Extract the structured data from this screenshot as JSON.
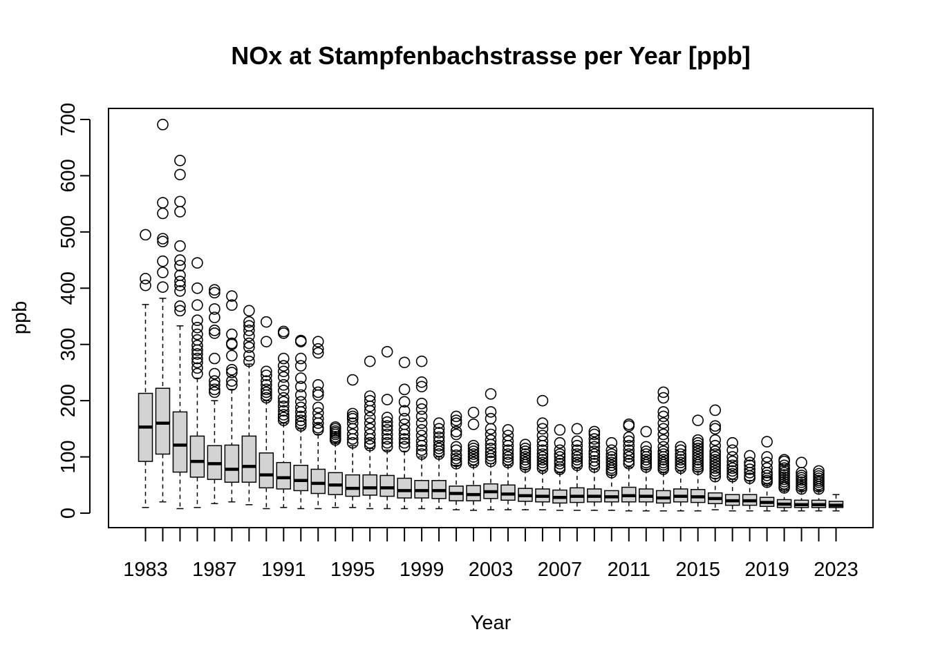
{
  "chart_data": {
    "type": "box",
    "title": "NOx at Stampfenbachstrasse per Year [ppb]",
    "xlabel": "Year",
    "ylabel": "ppb",
    "ylim": [
      0,
      700
    ],
    "y_ticks": [
      0,
      100,
      200,
      300,
      400,
      500,
      600,
      700
    ],
    "x_tick_labels": [
      "1983",
      "1987",
      "1991",
      "1995",
      "1999",
      "2003",
      "2007",
      "2011",
      "2015",
      "2019",
      "2023"
    ],
    "box_fill": "#d3d3d3",
    "grid": false,
    "categories": [
      1983,
      1984,
      1985,
      1986,
      1987,
      1988,
      1989,
      1990,
      1991,
      1992,
      1993,
      1994,
      1995,
      1996,
      1997,
      1998,
      1999,
      2000,
      2001,
      2002,
      2003,
      2004,
      2005,
      2006,
      2007,
      2008,
      2009,
      2010,
      2011,
      2012,
      2013,
      2014,
      2015,
      2016,
      2017,
      2018,
      2019,
      2020,
      2021,
      2022,
      2023
    ],
    "boxes": [
      {
        "year": 1983,
        "min": 10,
        "q1": 92,
        "median": 153,
        "q3": 213,
        "max": 371,
        "outliers": [
          405,
          417,
          495
        ]
      },
      {
        "year": 1984,
        "min": 20,
        "q1": 105,
        "median": 160,
        "q3": 222,
        "max": 382,
        "outliers": [
          402,
          428,
          448,
          483,
          488,
          533,
          552,
          691
        ]
      },
      {
        "year": 1985,
        "min": 8,
        "q1": 73,
        "median": 121,
        "q3": 180,
        "max": 333,
        "outliers": [
          360,
          368,
          395,
          405,
          412,
          423,
          440,
          450,
          475,
          536,
          554,
          602,
          627
        ]
      },
      {
        "year": 1986,
        "min": 10,
        "q1": 64,
        "median": 92,
        "q3": 137,
        "max": 240,
        "outliers": [
          248,
          258,
          268,
          275,
          283,
          290,
          298,
          308,
          318,
          330,
          343,
          370,
          400,
          445
        ]
      },
      {
        "year": 1987,
        "min": 17,
        "q1": 60,
        "median": 88,
        "q3": 120,
        "max": 200,
        "outliers": [
          215,
          220,
          228,
          235,
          248,
          275,
          320,
          325,
          348,
          363,
          392,
          397
        ]
      },
      {
        "year": 1988,
        "min": 20,
        "q1": 55,
        "median": 78,
        "q3": 121,
        "max": 220,
        "outliers": [
          228,
          235,
          250,
          255,
          280,
          300,
          302,
          318,
          370,
          386
        ]
      },
      {
        "year": 1989,
        "min": 15,
        "q1": 55,
        "median": 83,
        "q3": 137,
        "max": 265,
        "outliers": [
          270,
          280,
          295,
          302,
          315,
          325,
          333,
          340,
          360
        ]
      },
      {
        "year": 1990,
        "min": 8,
        "q1": 45,
        "median": 68,
        "q3": 107,
        "max": 200,
        "outliers": [
          205,
          210,
          215,
          220,
          228,
          235,
          245,
          252,
          305,
          340
        ]
      },
      {
        "year": 1991,
        "min": 10,
        "q1": 43,
        "median": 63,
        "q3": 90,
        "max": 160,
        "outliers": [
          165,
          170,
          175,
          182,
          190,
          198,
          205,
          218,
          228,
          242,
          252,
          262,
          275,
          320,
          323
        ]
      },
      {
        "year": 1992,
        "min": 8,
        "q1": 40,
        "median": 58,
        "q3": 85,
        "max": 150,
        "outliers": [
          155,
          160,
          165,
          172,
          180,
          188,
          198,
          210,
          225,
          240,
          262,
          275,
          305,
          307
        ]
      },
      {
        "year": 1993,
        "min": 8,
        "q1": 35,
        "median": 53,
        "q3": 78,
        "max": 140,
        "outliers": [
          148,
          152,
          160,
          168,
          178,
          188,
          210,
          215,
          228,
          285,
          292,
          305
        ]
      },
      {
        "year": 1994,
        "min": 10,
        "q1": 33,
        "median": 50,
        "q3": 72,
        "max": 125,
        "outliers": [
          130,
          133,
          136,
          140,
          143,
          146,
          150,
          153
        ]
      },
      {
        "year": 1995,
        "min": 10,
        "q1": 30,
        "median": 44,
        "q3": 68,
        "max": 120,
        "outliers": [
          125,
          132,
          140,
          150,
          160,
          168,
          172,
          177,
          237
        ]
      },
      {
        "year": 1996,
        "min": 8,
        "q1": 32,
        "median": 45,
        "q3": 68,
        "max": 115,
        "outliers": [
          120,
          125,
          132,
          140,
          150,
          160,
          170,
          182,
          190,
          200,
          208,
          270
        ]
      },
      {
        "year": 1997,
        "min": 8,
        "q1": 30,
        "median": 45,
        "q3": 67,
        "max": 112,
        "outliers": [
          118,
          125,
          132,
          140,
          148,
          155,
          162,
          170,
          202,
          287
        ]
      },
      {
        "year": 1998,
        "min": 8,
        "q1": 27,
        "median": 40,
        "q3": 62,
        "max": 110,
        "outliers": [
          118,
          125,
          132,
          140,
          148,
          158,
          168,
          182,
          198,
          220,
          268
        ]
      },
      {
        "year": 1999,
        "min": 8,
        "q1": 27,
        "median": 40,
        "q3": 58,
        "max": 100,
        "outliers": [
          105,
          112,
          120,
          128,
          138,
          148,
          160,
          172,
          185,
          195,
          225,
          233,
          270
        ]
      },
      {
        "year": 2000,
        "min": 8,
        "q1": 26,
        "median": 40,
        "q3": 58,
        "max": 100,
        "outliers": [
          105,
          110,
          115,
          120,
          128,
          135,
          143,
          150,
          160
        ]
      },
      {
        "year": 2001,
        "min": 6,
        "q1": 22,
        "median": 35,
        "q3": 48,
        "max": 85,
        "outliers": [
          88,
          92,
          97,
          103,
          112,
          118,
          140,
          145,
          160,
          165,
          172
        ]
      },
      {
        "year": 2002,
        "min": 5,
        "q1": 22,
        "median": 33,
        "q3": 49,
        "max": 85,
        "outliers": [
          90,
          95,
          100,
          105,
          110,
          115,
          120,
          158,
          179
        ]
      },
      {
        "year": 2003,
        "min": 6,
        "q1": 26,
        "median": 38,
        "q3": 52,
        "max": 88,
        "outliers": [
          92,
          97,
          102,
          108,
          115,
          122,
          130,
          140,
          150,
          168,
          180,
          212
        ]
      },
      {
        "year": 2004,
        "min": 6,
        "q1": 23,
        "median": 34,
        "q3": 50,
        "max": 85,
        "outliers": [
          90,
          95,
          100,
          105,
          112,
          120,
          128,
          138,
          148
        ]
      },
      {
        "year": 2005,
        "min": 6,
        "q1": 21,
        "median": 31,
        "q3": 44,
        "max": 78,
        "outliers": [
          82,
          86,
          90,
          95,
          100,
          105,
          110,
          115,
          122
        ]
      },
      {
        "year": 2006,
        "min": 6,
        "q1": 20,
        "median": 30,
        "q3": 43,
        "max": 75,
        "outliers": [
          80,
          85,
          90,
          95,
          100,
          105,
          112,
          120,
          128,
          138,
          150,
          160,
          200
        ]
      },
      {
        "year": 2007,
        "min": 5,
        "q1": 18,
        "median": 28,
        "q3": 41,
        "max": 72,
        "outliers": [
          78,
          82,
          88,
          93,
          100,
          105,
          112,
          125,
          148
        ]
      },
      {
        "year": 2008,
        "min": 5,
        "q1": 19,
        "median": 30,
        "q3": 45,
        "max": 80,
        "outliers": [
          85,
          90,
          95,
          100,
          105,
          112,
          120,
          128,
          150
        ]
      },
      {
        "year": 2009,
        "min": 5,
        "q1": 20,
        "median": 30,
        "q3": 43,
        "max": 78,
        "outliers": [
          82,
          88,
          93,
          100,
          105,
          110,
          118,
          125,
          132,
          140,
          145
        ]
      },
      {
        "year": 2010,
        "min": 5,
        "q1": 20,
        "median": 29,
        "q3": 40,
        "max": 68,
        "outliers": [
          72,
          76,
          80,
          85,
          90,
          95,
          100,
          105,
          112,
          125
        ]
      },
      {
        "year": 2011,
        "min": 4,
        "q1": 20,
        "median": 31,
        "q3": 46,
        "max": 82,
        "outliers": [
          88,
          93,
          100,
          105,
          112,
          120,
          128,
          135,
          155,
          158
        ]
      },
      {
        "year": 2012,
        "min": 4,
        "q1": 20,
        "median": 30,
        "q3": 43,
        "max": 78,
        "outliers": [
          82,
          86,
          90,
          95,
          100,
          105,
          110,
          118,
          145
        ]
      },
      {
        "year": 2013,
        "min": 4,
        "q1": 18,
        "median": 27,
        "q3": 40,
        "max": 72,
        "outliers": [
          78,
          82,
          86,
          90,
          95,
          100,
          105,
          110,
          118,
          130,
          140,
          150,
          160,
          172,
          180,
          205,
          215
        ]
      },
      {
        "year": 2014,
        "min": 4,
        "q1": 20,
        "median": 30,
        "q3": 43,
        "max": 75,
        "outliers": [
          80,
          85,
          90,
          95,
          100,
          105,
          112,
          118
        ]
      },
      {
        "year": 2015,
        "min": 4,
        "q1": 19,
        "median": 29,
        "q3": 42,
        "max": 74,
        "outliers": [
          78,
          82,
          86,
          90,
          95,
          100,
          105,
          110,
          115,
          120,
          125,
          130,
          165
        ]
      },
      {
        "year": 2016,
        "min": 6,
        "q1": 17,
        "median": 26,
        "q3": 36,
        "max": 62,
        "outliers": [
          65,
          70,
          75,
          80,
          85,
          90,
          95,
          100,
          105,
          110,
          120,
          130,
          150,
          155,
          183
        ]
      },
      {
        "year": 2017,
        "min": 4,
        "q1": 14,
        "median": 22,
        "q3": 33,
        "max": 60,
        "outliers": [
          65,
          70,
          75,
          80,
          85,
          92,
          100,
          112,
          125
        ]
      },
      {
        "year": 2018,
        "min": 4,
        "q1": 14,
        "median": 22,
        "q3": 33,
        "max": 58,
        "outliers": [
          62,
          66,
          72,
          78,
          85,
          90,
          102
        ]
      },
      {
        "year": 2019,
        "min": 4,
        "q1": 12,
        "median": 19,
        "q3": 28,
        "max": 52,
        "outliers": [
          55,
          58,
          62,
          67,
          72,
          80,
          90,
          100,
          127
        ]
      },
      {
        "year": 2020,
        "min": 4,
        "q1": 10,
        "median": 16,
        "q3": 24,
        "max": 42,
        "outliers": [
          45,
          48,
          52,
          56,
          60,
          64,
          68,
          72,
          76,
          80,
          85,
          92,
          95
        ]
      },
      {
        "year": 2021,
        "min": 4,
        "q1": 10,
        "median": 15,
        "q3": 23,
        "max": 40,
        "outliers": [
          43,
          47,
          51,
          55,
          59,
          63,
          67,
          72,
          90
        ]
      },
      {
        "year": 2022,
        "min": 4,
        "q1": 10,
        "median": 15,
        "q3": 23,
        "max": 40,
        "outliers": [
          43,
          47,
          51,
          55,
          58,
          62,
          66,
          70,
          75
        ]
      },
      {
        "year": 2023,
        "min": 4,
        "q1": 10,
        "median": 14,
        "q3": 21,
        "max": 33,
        "outliers": []
      }
    ]
  }
}
